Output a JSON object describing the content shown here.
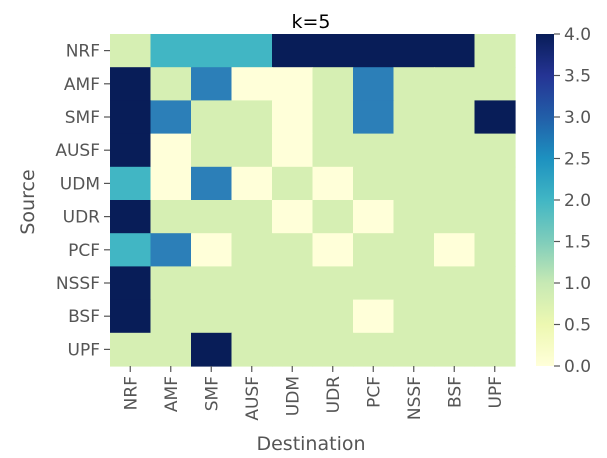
{
  "chart_data": {
    "type": "heatmap",
    "title": "k=5",
    "xlabel": "Destination",
    "ylabel": "Source",
    "x_categories": [
      "NRF",
      "AMF",
      "SMF",
      "AUSF",
      "UDM",
      "UDR",
      "PCF",
      "NSSF",
      "BSF",
      "UPF"
    ],
    "y_categories": [
      "NRF",
      "AMF",
      "SMF",
      "AUSF",
      "UDM",
      "UDR",
      "PCF",
      "NSSF",
      "BSF",
      "UPF"
    ],
    "values": [
      [
        1,
        2,
        2,
        2,
        4,
        4,
        4,
        4,
        4,
        1
      ],
      [
        4,
        1,
        3,
        0,
        0,
        1,
        3,
        1,
        1,
        1
      ],
      [
        4,
        3,
        1,
        1,
        0,
        1,
        3,
        1,
        1,
        4
      ],
      [
        4,
        0,
        1,
        1,
        0,
        1,
        1,
        1,
        1,
        1
      ],
      [
        2,
        0,
        3,
        0,
        1,
        0,
        1,
        1,
        1,
        1
      ],
      [
        4,
        1,
        1,
        1,
        0,
        1,
        0,
        1,
        1,
        1
      ],
      [
        2,
        3,
        0,
        1,
        1,
        0,
        1,
        1,
        0,
        1
      ],
      [
        4,
        1,
        1,
        1,
        1,
        1,
        1,
        1,
        1,
        1
      ],
      [
        4,
        1,
        1,
        1,
        1,
        1,
        0,
        1,
        1,
        1
      ],
      [
        1,
        1,
        4,
        1,
        1,
        1,
        1,
        1,
        1,
        1
      ]
    ],
    "colorbar": {
      "range": [
        0.0,
        4.0
      ],
      "ticks": [
        "0.0",
        "0.5",
        "1.0",
        "1.5",
        "2.0",
        "2.5",
        "3.0",
        "3.5",
        "4.0"
      ],
      "colormap": "YlGnBu"
    },
    "colors": {
      "0": "#ffffd9",
      "1": "#d6efb3",
      "2": "#41b6c4",
      "3": "#2c7fb8",
      "4": "#081d58"
    }
  }
}
